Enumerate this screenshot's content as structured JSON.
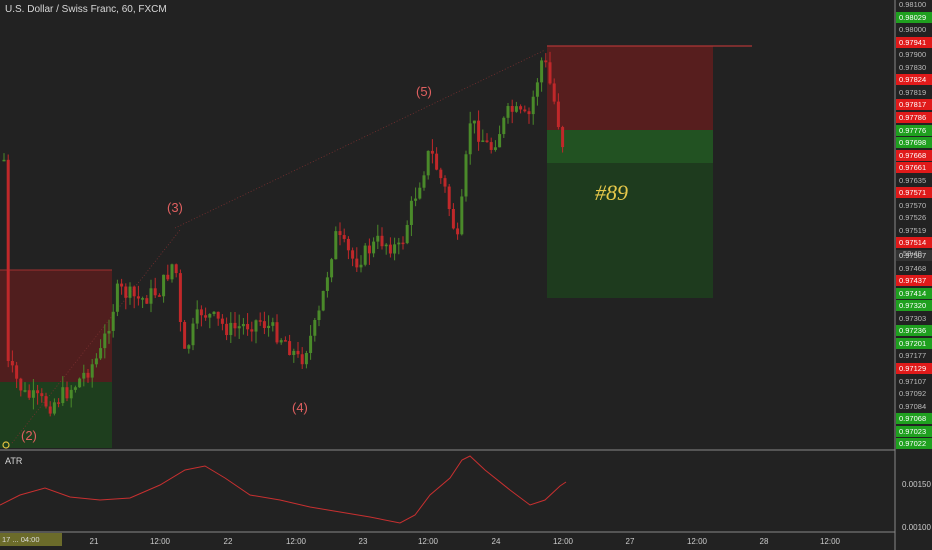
{
  "header": {
    "title": "U.S. Dollar / Swiss Franc, 60, FXCM"
  },
  "indicator": {
    "label": "ATR"
  },
  "waves": [
    "(2)",
    "(3)",
    "(4)",
    "(5)"
  ],
  "trade_label": "#89",
  "price_axis": [
    {
      "text": "0.98100",
      "style": "plain"
    },
    {
      "text": "0.98029",
      "style": "green"
    },
    {
      "text": "0.98000",
      "style": "plain"
    },
    {
      "text": "0.97941",
      "style": "red"
    },
    {
      "text": "0.97900",
      "style": "plain"
    },
    {
      "text": "0.97830",
      "style": "plain"
    },
    {
      "text": "0.97824",
      "style": "red"
    },
    {
      "text": "0.97819",
      "style": "plain"
    },
    {
      "text": "0.97817",
      "style": "red"
    },
    {
      "text": "0.97786",
      "style": "red"
    },
    {
      "text": "0.97776",
      "style": "green"
    },
    {
      "text": "0.97698",
      "style": "green"
    },
    {
      "text": "0.97668",
      "style": "red"
    },
    {
      "text": "0.97661",
      "style": "red"
    },
    {
      "text": "0.97635",
      "style": "plain"
    },
    {
      "text": "0.97571",
      "style": "red"
    },
    {
      "text": "0.97570",
      "style": "plain"
    },
    {
      "text": "0.97526",
      "style": "plain"
    },
    {
      "text": "0.97519",
      "style": "plain"
    },
    {
      "text": "0.97514",
      "style": "red"
    },
    {
      "text": "0.97507",
      "style": "gray"
    },
    {
      "text": "0.97468",
      "style": "plain"
    },
    {
      "text": "0.97437",
      "style": "red"
    },
    {
      "text": "0.97414",
      "style": "green"
    },
    {
      "text": "0.97320",
      "style": "green"
    },
    {
      "text": "0.97303",
      "style": "plain"
    },
    {
      "text": "0.97236",
      "style": "green"
    },
    {
      "text": "0.97201",
      "style": "green"
    },
    {
      "text": "0.97177",
      "style": "plain"
    },
    {
      "text": "0.97129",
      "style": "red"
    },
    {
      "text": "0.97107",
      "style": "plain"
    },
    {
      "text": "0.97092",
      "style": "plain"
    },
    {
      "text": "0.97084",
      "style": "plain"
    },
    {
      "text": "0.97068",
      "style": "green"
    },
    {
      "text": "0.97023",
      "style": "green"
    },
    {
      "text": "0.97022",
      "style": "green"
    }
  ],
  "countdown": "58:40",
  "atr_axis": [
    "0.00150",
    "0.00100"
  ],
  "time_axis": [
    "21",
    "12:00",
    "22",
    "12:00",
    "23",
    "12:00",
    "24",
    "12:00",
    "27",
    "12:00",
    "28",
    "12:00"
  ],
  "crosshair_time": "17 ... 04:00",
  "colors": {
    "up": "#4a8a2a",
    "down": "#c0282a",
    "bg": "#222222"
  },
  "chart_data": {
    "type": "candlestick",
    "title": "U.S. Dollar / Swiss Franc, 60, FXCM",
    "x_ticks": [
      "21",
      "12:00",
      "22",
      "12:00",
      "23",
      "12:00",
      "24",
      "12:00",
      "27",
      "12:00",
      "28",
      "12:00"
    ],
    "y_range": [
      0.97022,
      0.981
    ],
    "annotations": [
      "(2)",
      "(3)",
      "(4)",
      "(5)",
      "#89"
    ],
    "indicator": "ATR",
    "atr_range": [
      0.001,
      0.0019
    ]
  }
}
